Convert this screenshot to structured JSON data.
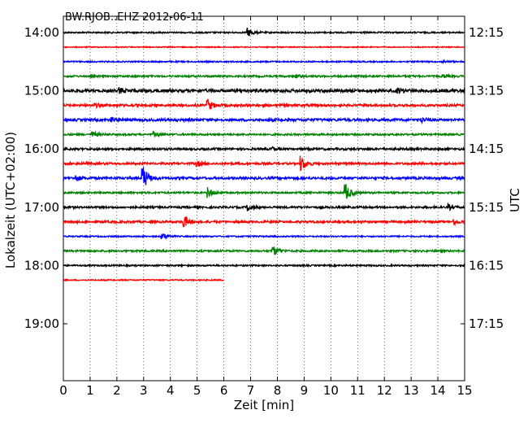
{
  "chart_data": {
    "type": "line",
    "title": "BW.RJOB..EHZ 2012-06-11",
    "xlabel": "Zeit  [min]",
    "ylabel_left": "Lokalzeit (UTC+02:00)",
    "ylabel_right": "UTC",
    "xlim": [
      0,
      15
    ],
    "x_ticks": [
      "0",
      "1",
      "2",
      "3",
      "4",
      "5",
      "6",
      "7",
      "8",
      "9",
      "10",
      "11",
      "12",
      "13",
      "14",
      "15"
    ],
    "y_ticks_left": [
      "14:00",
      "15:00",
      "16:00",
      "17:00",
      "18:00",
      "19:00"
    ],
    "y_ticks_right": [
      "12:15",
      "13:15",
      "14:15",
      "15:15",
      "16:15",
      "17:15"
    ],
    "grid": "vertical dotted at each minute",
    "row_interval_min": 15,
    "colors": [
      "#000000",
      "#ff0000",
      "#0000ff",
      "#008000"
    ],
    "traces": [
      {
        "start": "14:00",
        "color": "#000000",
        "end_min": 15,
        "amp": 0.9,
        "events": [
          {
            "t": 6.9,
            "a": 5
          }
        ]
      },
      {
        "start": "14:15",
        "color": "#ff0000",
        "end_min": 15,
        "amp": 0.6,
        "events": []
      },
      {
        "start": "14:30",
        "color": "#0000ff",
        "end_min": 15,
        "amp": 0.8,
        "events": [
          {
            "t": 14.2,
            "a": 1.5
          }
        ]
      },
      {
        "start": "14:45",
        "color": "#008000",
        "end_min": 15,
        "amp": 1.1,
        "events": [
          {
            "t": 8.7,
            "a": 1.8
          },
          {
            "t": 14.2,
            "a": 1.6
          }
        ]
      },
      {
        "start": "15:00",
        "color": "#000000",
        "end_min": 15,
        "amp": 1.8,
        "events": [
          {
            "t": 2.1,
            "a": 3
          },
          {
            "t": 12.5,
            "a": 3
          }
        ]
      },
      {
        "start": "15:15",
        "color": "#ff0000",
        "end_min": 15,
        "amp": 1.4,
        "events": [
          {
            "t": 5.4,
            "a": 7
          },
          {
            "t": 1.2,
            "a": 2
          }
        ]
      },
      {
        "start": "15:30",
        "color": "#0000ff",
        "end_min": 15,
        "amp": 1.6,
        "events": [
          {
            "t": 1.8,
            "a": 2.5
          },
          {
            "t": 13.4,
            "a": 2.5
          }
        ]
      },
      {
        "start": "15:45",
        "color": "#008000",
        "end_min": 15,
        "amp": 1.1,
        "events": [
          {
            "t": 1.1,
            "a": 3
          },
          {
            "t": 3.4,
            "a": 2.5
          }
        ]
      },
      {
        "start": "16:00",
        "color": "#000000",
        "end_min": 15,
        "amp": 1.3,
        "events": [
          {
            "t": 7.8,
            "a": 2
          }
        ]
      },
      {
        "start": "16:15",
        "color": "#ff0000",
        "end_min": 15,
        "amp": 1.3,
        "events": [
          {
            "t": 8.9,
            "a": 9
          },
          {
            "t": 5.0,
            "a": 3
          }
        ]
      },
      {
        "start": "16:30",
        "color": "#0000ff",
        "end_min": 15,
        "amp": 1.4,
        "events": [
          {
            "t": 2.97,
            "a": 16
          },
          {
            "t": 0.5,
            "a": 3
          }
        ]
      },
      {
        "start": "16:45",
        "color": "#008000",
        "end_min": 15,
        "amp": 1.1,
        "events": [
          {
            "t": 10.55,
            "a": 11
          },
          {
            "t": 5.4,
            "a": 6
          }
        ]
      },
      {
        "start": "17:00",
        "color": "#000000",
        "end_min": 15,
        "amp": 1.2,
        "events": [
          {
            "t": 6.9,
            "a": 4
          },
          {
            "t": 14.4,
            "a": 3
          }
        ]
      },
      {
        "start": "17:15",
        "color": "#ff0000",
        "end_min": 15,
        "amp": 1.3,
        "events": [
          {
            "t": 4.5,
            "a": 8
          },
          {
            "t": 14.6,
            "a": 3
          }
        ]
      },
      {
        "start": "17:30",
        "color": "#0000ff",
        "end_min": 15,
        "amp": 0.8,
        "events": [
          {
            "t": 3.7,
            "a": 4
          }
        ]
      },
      {
        "start": "17:45",
        "color": "#008000",
        "end_min": 15,
        "amp": 1.1,
        "events": [
          {
            "t": 7.85,
            "a": 6
          }
        ]
      },
      {
        "start": "18:00",
        "color": "#000000",
        "end_min": 15,
        "amp": 0.9,
        "events": []
      },
      {
        "start": "18:15",
        "color": "#ff0000",
        "end_min": 6.0,
        "amp": 0.7,
        "events": []
      }
    ]
  }
}
